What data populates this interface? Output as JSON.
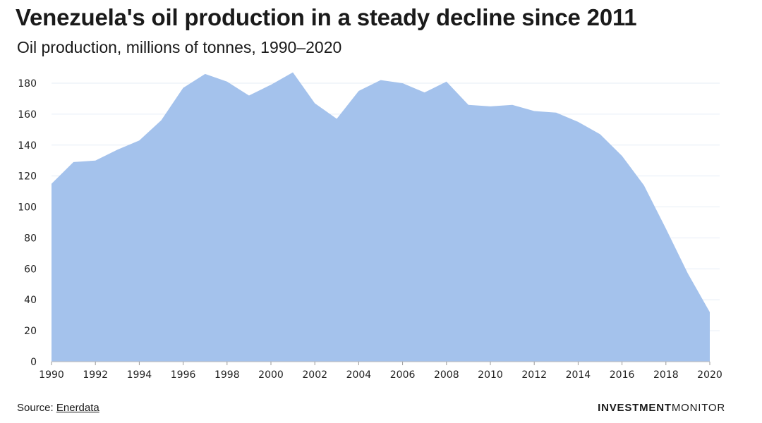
{
  "header": {
    "title": "Venezuela's oil production in a steady decline since 2011",
    "subtitle": "Oil production, millions of tonnes, 1990–2020"
  },
  "footer": {
    "source_label": "Source:",
    "source_link": "Enerdata",
    "brand_bold": "INVESTMENT",
    "brand_light": "MONITOR"
  },
  "colors": {
    "area_fill": "#a4c2ec",
    "grid": "#e6edf6",
    "text": "#1a1a1a"
  },
  "chart_data": {
    "type": "area",
    "title": "Venezuela's oil production in a steady decline since 2011",
    "subtitle": "Oil production, millions of tonnes, 1990–2020",
    "xlabel": "",
    "ylabel": "",
    "ylim": [
      0,
      180
    ],
    "y_ticks": [
      0,
      20,
      40,
      60,
      80,
      100,
      120,
      140,
      160,
      180
    ],
    "x_ticks": [
      1990,
      1992,
      1994,
      1996,
      1998,
      2000,
      2002,
      2004,
      2006,
      2008,
      2010,
      2012,
      2014,
      2016,
      2018,
      2020
    ],
    "grid": true,
    "x": [
      1990,
      1991,
      1992,
      1993,
      1994,
      1995,
      1996,
      1997,
      1998,
      1999,
      2000,
      2001,
      2002,
      2003,
      2004,
      2005,
      2006,
      2007,
      2008,
      2009,
      2010,
      2011,
      2012,
      2013,
      2014,
      2015,
      2016,
      2017,
      2018,
      2019,
      2020
    ],
    "series": [
      {
        "values": [
          115,
          129,
          130,
          137,
          143,
          156,
          177,
          186,
          181,
          172,
          179,
          187,
          167,
          157,
          175,
          182,
          180,
          174,
          181,
          166,
          165,
          166,
          162,
          161,
          155,
          147,
          133,
          114,
          86,
          57,
          32
        ]
      }
    ]
  }
}
